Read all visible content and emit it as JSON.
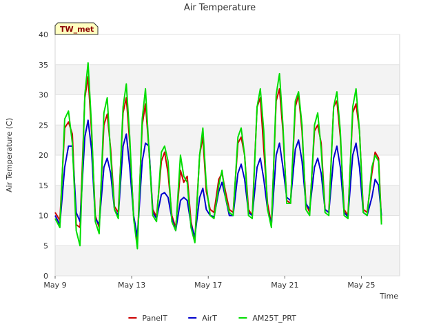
{
  "chart_data": {
    "type": "line",
    "title": "Air Temperature",
    "xlabel": "Time",
    "ylabel": "Air Temperature (C)",
    "station_label": "TW_met",
    "xlim": [
      0,
      18
    ],
    "ylim": [
      0,
      40
    ],
    "yticks": [
      0,
      5,
      10,
      15,
      20,
      25,
      30,
      35,
      40
    ],
    "xticks": [
      {
        "x": 0,
        "label": "May 9"
      },
      {
        "x": 4,
        "label": "May 13"
      },
      {
        "x": 8,
        "label": "May 17"
      },
      {
        "x": 12,
        "label": "May 21"
      },
      {
        "x": 16,
        "label": "May 25"
      }
    ],
    "grid": "horizontal bands",
    "legend_position": "bottom",
    "x_units": "days since May 9",
    "series": [
      {
        "name": "PanelT",
        "color": "#cc0000",
        "points": [
          [
            0,
            10.5
          ],
          [
            0.25,
            9.2
          ],
          [
            0.5,
            24.5
          ],
          [
            0.7,
            25.5
          ],
          [
            0.9,
            23.5
          ],
          [
            1.1,
            8.5
          ],
          [
            1.3,
            8.0
          ],
          [
            1.55,
            29.5
          ],
          [
            1.72,
            33.0
          ],
          [
            1.9,
            24.0
          ],
          [
            2.1,
            10.0
          ],
          [
            2.3,
            8.0
          ],
          [
            2.55,
            25.0
          ],
          [
            2.72,
            26.8
          ],
          [
            2.9,
            21.0
          ],
          [
            3.1,
            11.5
          ],
          [
            3.3,
            10.5
          ],
          [
            3.55,
            27.0
          ],
          [
            3.72,
            29.5
          ],
          [
            3.9,
            22.0
          ],
          [
            4.1,
            10.0
          ],
          [
            4.3,
            5.8
          ],
          [
            4.55,
            25.0
          ],
          [
            4.72,
            28.5
          ],
          [
            4.9,
            21.0
          ],
          [
            5.1,
            11.0
          ],
          [
            5.3,
            9.8
          ],
          [
            5.55,
            19.0
          ],
          [
            5.72,
            20.5
          ],
          [
            5.9,
            17.0
          ],
          [
            6.1,
            10.0
          ],
          [
            6.3,
            8.0
          ],
          [
            6.55,
            17.5
          ],
          [
            6.72,
            15.5
          ],
          [
            6.9,
            16.5
          ],
          [
            7.1,
            9.0
          ],
          [
            7.3,
            6.0
          ],
          [
            7.55,
            20.0
          ],
          [
            7.72,
            23.0
          ],
          [
            7.9,
            14.0
          ],
          [
            8.1,
            11.0
          ],
          [
            8.3,
            10.5
          ],
          [
            8.55,
            16.0
          ],
          [
            8.72,
            17.0
          ],
          [
            8.9,
            14.0
          ],
          [
            9.1,
            11.0
          ],
          [
            9.3,
            10.5
          ],
          [
            9.55,
            22.0
          ],
          [
            9.72,
            23.0
          ],
          [
            9.9,
            20.0
          ],
          [
            10.1,
            11.0
          ],
          [
            10.3,
            10.0
          ],
          [
            10.55,
            28.0
          ],
          [
            10.72,
            29.5
          ],
          [
            10.9,
            21.0
          ],
          [
            11.1,
            12.0
          ],
          [
            11.3,
            8.5
          ],
          [
            11.55,
            29.0
          ],
          [
            11.72,
            31.0
          ],
          [
            11.9,
            24.0
          ],
          [
            12.1,
            12.5
          ],
          [
            12.3,
            12.0
          ],
          [
            12.55,
            28.0
          ],
          [
            12.72,
            30.0
          ],
          [
            12.9,
            24.0
          ],
          [
            13.1,
            12.0
          ],
          [
            13.3,
            10.5
          ],
          [
            13.55,
            24.0
          ],
          [
            13.72,
            25.0
          ],
          [
            13.9,
            22.0
          ],
          [
            14.1,
            11.0
          ],
          [
            14.3,
            10.5
          ],
          [
            14.55,
            28.0
          ],
          [
            14.72,
            29.0
          ],
          [
            14.9,
            23.0
          ],
          [
            15.1,
            11.0
          ],
          [
            15.3,
            10.0
          ],
          [
            15.55,
            27.0
          ],
          [
            15.72,
            28.5
          ],
          [
            15.9,
            24.0
          ],
          [
            16.1,
            11.0
          ],
          [
            16.3,
            10.5
          ],
          [
            16.55,
            17.0
          ],
          [
            16.72,
            20.5
          ],
          [
            16.9,
            19.5
          ],
          [
            17.05,
            9.0
          ]
        ]
      },
      {
        "name": "AirT",
        "color": "#0000cc",
        "points": [
          [
            0,
            10.0
          ],
          [
            0.25,
            8.5
          ],
          [
            0.5,
            18.0
          ],
          [
            0.7,
            21.5
          ],
          [
            0.9,
            21.5
          ],
          [
            1.1,
            10.5
          ],
          [
            1.3,
            9.0
          ],
          [
            1.55,
            23.0
          ],
          [
            1.72,
            25.8
          ],
          [
            1.9,
            21.0
          ],
          [
            2.1,
            9.5
          ],
          [
            2.3,
            8.5
          ],
          [
            2.55,
            18.0
          ],
          [
            2.72,
            19.5
          ],
          [
            2.9,
            17.0
          ],
          [
            3.1,
            11.0
          ],
          [
            3.3,
            10.0
          ],
          [
            3.55,
            21.5
          ],
          [
            3.72,
            23.5
          ],
          [
            3.9,
            18.0
          ],
          [
            4.1,
            10.0
          ],
          [
            4.3,
            6.5
          ],
          [
            4.55,
            19.0
          ],
          [
            4.72,
            22.0
          ],
          [
            4.9,
            21.5
          ],
          [
            5.1,
            10.5
          ],
          [
            5.3,
            9.5
          ],
          [
            5.55,
            13.5
          ],
          [
            5.72,
            13.8
          ],
          [
            5.9,
            13.0
          ],
          [
            6.1,
            9.5
          ],
          [
            6.3,
            7.5
          ],
          [
            6.55,
            12.5
          ],
          [
            6.72,
            13.0
          ],
          [
            6.9,
            12.5
          ],
          [
            7.1,
            8.5
          ],
          [
            7.3,
            6.5
          ],
          [
            7.55,
            13.0
          ],
          [
            7.72,
            14.5
          ],
          [
            7.9,
            11.0
          ],
          [
            8.1,
            10.0
          ],
          [
            8.3,
            9.8
          ],
          [
            8.55,
            14.0
          ],
          [
            8.72,
            15.5
          ],
          [
            8.9,
            13.0
          ],
          [
            9.1,
            10.0
          ],
          [
            9.3,
            10.0
          ],
          [
            9.55,
            17.0
          ],
          [
            9.72,
            18.5
          ],
          [
            9.9,
            16.0
          ],
          [
            10.1,
            10.5
          ],
          [
            10.3,
            10.0
          ],
          [
            10.55,
            18.0
          ],
          [
            10.72,
            19.5
          ],
          [
            10.9,
            16.0
          ],
          [
            11.1,
            11.0
          ],
          [
            11.3,
            8.5
          ],
          [
            11.55,
            20.0
          ],
          [
            11.72,
            22.0
          ],
          [
            11.9,
            18.0
          ],
          [
            12.1,
            13.0
          ],
          [
            12.3,
            12.5
          ],
          [
            12.55,
            21.0
          ],
          [
            12.72,
            22.5
          ],
          [
            12.9,
            19.0
          ],
          [
            13.1,
            12.0
          ],
          [
            13.3,
            11.0
          ],
          [
            13.55,
            18.0
          ],
          [
            13.72,
            19.5
          ],
          [
            13.9,
            17.0
          ],
          [
            14.1,
            11.0
          ],
          [
            14.3,
            10.5
          ],
          [
            14.55,
            19.5
          ],
          [
            14.72,
            21.5
          ],
          [
            14.9,
            18.0
          ],
          [
            15.1,
            10.5
          ],
          [
            15.3,
            9.8
          ],
          [
            15.55,
            20.0
          ],
          [
            15.72,
            22.0
          ],
          [
            15.9,
            18.0
          ],
          [
            16.1,
            10.5
          ],
          [
            16.3,
            10.0
          ],
          [
            16.55,
            13.0
          ],
          [
            16.72,
            16.0
          ],
          [
            16.9,
            15.0
          ],
          [
            17.05,
            10.0
          ]
        ]
      },
      {
        "name": "AM25T_PRT",
        "color": "#00dd00",
        "points": [
          [
            0,
            9.5
          ],
          [
            0.25,
            8.0
          ],
          [
            0.5,
            26.0
          ],
          [
            0.7,
            27.3
          ],
          [
            0.9,
            22.0
          ],
          [
            1.1,
            7.5
          ],
          [
            1.3,
            5.0
          ],
          [
            1.55,
            30.0
          ],
          [
            1.72,
            35.3
          ],
          [
            1.9,
            25.0
          ],
          [
            2.1,
            9.0
          ],
          [
            2.3,
            7.0
          ],
          [
            2.55,
            27.0
          ],
          [
            2.72,
            29.5
          ],
          [
            2.9,
            20.0
          ],
          [
            3.1,
            11.0
          ],
          [
            3.3,
            9.5
          ],
          [
            3.55,
            28.0
          ],
          [
            3.72,
            31.8
          ],
          [
            3.9,
            23.0
          ],
          [
            4.1,
            9.5
          ],
          [
            4.3,
            4.5
          ],
          [
            4.55,
            26.0
          ],
          [
            4.72,
            31.0
          ],
          [
            4.9,
            21.0
          ],
          [
            5.1,
            10.0
          ],
          [
            5.3,
            9.0
          ],
          [
            5.55,
            20.5
          ],
          [
            5.72,
            21.5
          ],
          [
            5.9,
            19.0
          ],
          [
            6.1,
            9.0
          ],
          [
            6.3,
            7.5
          ],
          [
            6.55,
            20.0
          ],
          [
            6.72,
            16.5
          ],
          [
            6.9,
            15.5
          ],
          [
            7.1,
            8.0
          ],
          [
            7.3,
            5.5
          ],
          [
            7.55,
            20.0
          ],
          [
            7.72,
            24.5
          ],
          [
            7.9,
            15.0
          ],
          [
            8.1,
            10.0
          ],
          [
            8.3,
            9.5
          ],
          [
            8.55,
            15.0
          ],
          [
            8.72,
            17.5
          ],
          [
            8.9,
            13.0
          ],
          [
            9.1,
            10.5
          ],
          [
            9.3,
            10.0
          ],
          [
            9.55,
            23.0
          ],
          [
            9.72,
            24.5
          ],
          [
            9.9,
            20.0
          ],
          [
            10.1,
            10.0
          ],
          [
            10.3,
            9.5
          ],
          [
            10.55,
            28.0
          ],
          [
            10.72,
            31.0
          ],
          [
            10.9,
            24.0
          ],
          [
            11.1,
            11.0
          ],
          [
            11.3,
            8.0
          ],
          [
            11.55,
            30.0
          ],
          [
            11.72,
            33.5
          ],
          [
            11.9,
            25.0
          ],
          [
            12.1,
            12.0
          ],
          [
            12.3,
            12.0
          ],
          [
            12.55,
            29.0
          ],
          [
            12.72,
            30.5
          ],
          [
            12.9,
            25.0
          ],
          [
            13.1,
            11.0
          ],
          [
            13.3,
            10.0
          ],
          [
            13.55,
            25.0
          ],
          [
            13.72,
            27.0
          ],
          [
            13.9,
            21.0
          ],
          [
            14.1,
            10.5
          ],
          [
            14.3,
            10.0
          ],
          [
            14.55,
            28.0
          ],
          [
            14.72,
            30.5
          ],
          [
            14.9,
            24.0
          ],
          [
            15.1,
            10.0
          ],
          [
            15.3,
            9.5
          ],
          [
            15.55,
            28.0
          ],
          [
            15.72,
            31.0
          ],
          [
            15.9,
            24.0
          ],
          [
            16.1,
            10.5
          ],
          [
            16.3,
            10.0
          ],
          [
            16.55,
            18.0
          ],
          [
            16.72,
            20.0
          ],
          [
            16.9,
            19.0
          ],
          [
            17.05,
            8.5
          ]
        ]
      }
    ]
  }
}
